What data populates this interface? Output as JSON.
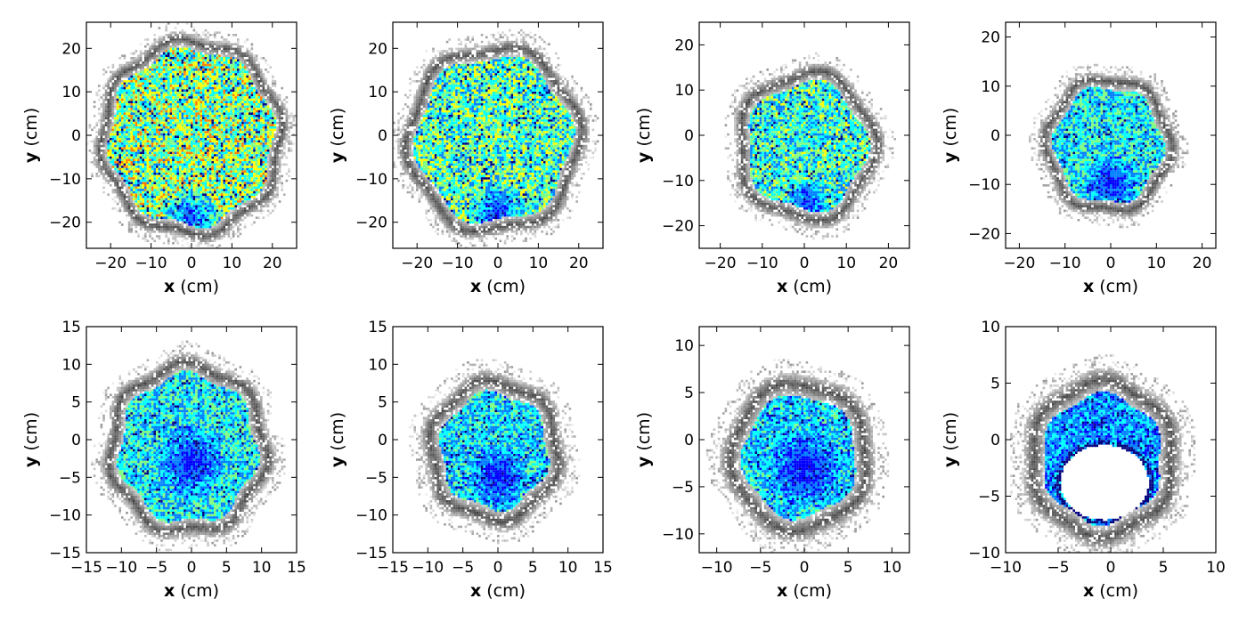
{
  "chart_data": [
    {
      "type": "heatmap",
      "xlabel": {
        "var": "x",
        "unit": " (cm)"
      },
      "ylabel": {
        "var": "y",
        "unit": " (cm)"
      },
      "xlim": [
        -26,
        26
      ],
      "ylim": [
        -26,
        26
      ],
      "xticks": [
        -20,
        -10,
        0,
        10,
        20
      ],
      "yticks": [
        -20,
        -10,
        0,
        10,
        20
      ],
      "xtick_labels": [
        "−20",
        "−10",
        "0",
        "10",
        "20"
      ],
      "ytick_labels": [
        "−20",
        "−10",
        "0",
        "10",
        "20"
      ],
      "shape": {
        "cx": 0,
        "cy": -0.5,
        "r": 22.5,
        "lobes": 8,
        "lobe_amp": 0.04
      },
      "rim_width": 2.2,
      "inner_max_level": 0.85,
      "dense_region": {
        "cx": 0,
        "cy": -19,
        "r": 7
      },
      "hole": null
    },
    {
      "type": "heatmap",
      "xlabel": {
        "var": "x",
        "unit": " (cm)"
      },
      "ylabel": {
        "var": "y",
        "unit": " (cm)"
      },
      "xlim": [
        -26,
        26
      ],
      "ylim": [
        -26,
        26
      ],
      "xticks": [
        -20,
        -10,
        0,
        10,
        20
      ],
      "yticks": [
        -20,
        -10,
        0,
        10,
        20
      ],
      "xtick_labels": [
        "−20",
        "−10",
        "0",
        "10",
        "20"
      ],
      "ytick_labels": [
        "−20",
        "−10",
        "0",
        "10",
        "20"
      ],
      "shape": {
        "cx": -1,
        "cy": -1,
        "r": 21.5,
        "lobes": 6,
        "lobe_amp": 0.05
      },
      "rim_width": 2.4,
      "inner_max_level": 0.75,
      "dense_region": {
        "cx": 0,
        "cy": -18,
        "r": 7
      },
      "hole": null
    },
    {
      "type": "heatmap",
      "xlabel": {
        "var": "x",
        "unit": " (cm)"
      },
      "ylabel": {
        "var": "y",
        "unit": " (cm)"
      },
      "xlim": [
        -25,
        25
      ],
      "ylim": [
        -25,
        25
      ],
      "xticks": [
        -20,
        -10,
        0,
        10,
        20
      ],
      "yticks": [
        -20,
        -10,
        0,
        10,
        20
      ],
      "xtick_labels": [
        "−20",
        "−10",
        "0",
        "10",
        "20"
      ],
      "ytick_labels": [
        "−20",
        "−10",
        "0",
        "10",
        "20"
      ],
      "shape": {
        "cx": 0.5,
        "cy": -2.5,
        "r": 16.5,
        "lobes": 5,
        "lobe_amp": 0.06
      },
      "rim_width": 2.3,
      "inner_max_level": 0.7,
      "dense_region": {
        "cx": 1,
        "cy": -15,
        "r": 5
      },
      "hole": null
    },
    {
      "type": "heatmap",
      "xlabel": {
        "var": "x",
        "unit": " (cm)"
      },
      "ylabel": {
        "var": "y",
        "unit": " (cm)"
      },
      "xlim": [
        -23,
        23
      ],
      "ylim": [
        -23,
        23
      ],
      "xticks": [
        -20,
        -10,
        0,
        10,
        20
      ],
      "yticks": [
        -20,
        -10,
        0,
        10,
        20
      ],
      "xtick_labels": [
        "−20",
        "−10",
        "0",
        "10",
        "20"
      ],
      "ytick_labels": [
        "−20",
        "−10",
        "0",
        "10",
        "20"
      ],
      "shape": {
        "cx": -0.5,
        "cy": -2,
        "r": 13.8,
        "lobes": 6,
        "lobe_amp": 0.05
      },
      "rim_width": 2.0,
      "inner_max_level": 0.62,
      "dense_region": {
        "cx": 0,
        "cy": -10,
        "r": 6
      },
      "hole": null
    },
    {
      "type": "heatmap",
      "xlabel": {
        "var": "x",
        "unit": " (cm)"
      },
      "ylabel": {
        "var": "y",
        "unit": " (cm)"
      },
      "xlim": [
        -15,
        15
      ],
      "ylim": [
        -15,
        15
      ],
      "xticks": [
        -15,
        -10,
        -5,
        0,
        5,
        10,
        15
      ],
      "yticks": [
        -15,
        -10,
        -5,
        0,
        5,
        10,
        15
      ],
      "xtick_labels": [
        "−15",
        "−10",
        "−5",
        "0",
        "5",
        "10",
        "15"
      ],
      "ytick_labels": [
        "−15",
        "−10",
        "−5",
        "0",
        "5",
        "10",
        "15"
      ],
      "shape": {
        "cx": -0.5,
        "cy": -1.2,
        "r": 11.3,
        "lobes": 7,
        "lobe_amp": 0.05
      },
      "rim_width": 1.5,
      "inner_max_level": 0.62,
      "dense_region": {
        "cx": 0,
        "cy": -3,
        "r": 5
      },
      "hole": null
    },
    {
      "type": "heatmap",
      "xlabel": {
        "var": "x",
        "unit": " (cm)"
      },
      "ylabel": {
        "var": "y",
        "unit": " (cm)"
      },
      "xlim": [
        -15,
        15
      ],
      "ylim": [
        -15,
        15
      ],
      "xticks": [
        -15,
        -10,
        -5,
        0,
        5,
        10,
        15
      ],
      "yticks": [
        -15,
        -10,
        -5,
        0,
        5,
        10,
        15
      ],
      "xtick_labels": [
        "−15",
        "−10",
        "−5",
        "0",
        "5",
        "10",
        "15"
      ],
      "ytick_labels": [
        "−15",
        "−10",
        "−5",
        "0",
        "5",
        "10",
        "15"
      ],
      "shape": {
        "cx": -0.5,
        "cy": -1.5,
        "r": 9.4,
        "lobes": 6,
        "lobe_amp": 0.05
      },
      "rim_width": 1.7,
      "inner_max_level": 0.58,
      "dense_region": {
        "cx": 0,
        "cy": -5,
        "r": 4
      },
      "hole": null
    },
    {
      "type": "heatmap",
      "xlabel": {
        "var": "x",
        "unit": " (cm)"
      },
      "ylabel": {
        "var": "y",
        "unit": " (cm)"
      },
      "xlim": [
        -12,
        12
      ],
      "ylim": [
        -12,
        12
      ],
      "xticks": [
        -10,
        -5,
        0,
        5,
        10
      ],
      "yticks": [
        -10,
        -5,
        0,
        5,
        10
      ],
      "xtick_labels": [
        "−10",
        "−5",
        "0",
        "5",
        "10"
      ],
      "ytick_labels": [
        "−10",
        "−5",
        "0",
        "5",
        "10"
      ],
      "shape": {
        "cx": -0.5,
        "cy": -1.8,
        "r": 8.0,
        "lobes": 5,
        "lobe_amp": 0.04
      },
      "rim_width": 1.5,
      "inner_max_level": 0.55,
      "dense_region": {
        "cx": 0,
        "cy": -3,
        "r": 4
      },
      "hole": null
    },
    {
      "type": "heatmap",
      "xlabel": {
        "var": "x",
        "unit": " (cm)"
      },
      "ylabel": {
        "var": "y",
        "unit": " (cm)"
      },
      "xlim": [
        -10,
        10
      ],
      "ylim": [
        -10,
        10
      ],
      "xticks": [
        -10,
        -5,
        0,
        5,
        10
      ],
      "yticks": [
        -10,
        -5,
        0,
        5,
        10
      ],
      "xtick_labels": [
        "−10",
        "−5",
        "0",
        "5",
        "10"
      ],
      "ytick_labels": [
        "−10",
        "−5",
        "0",
        "5",
        "10"
      ],
      "shape": {
        "cx": -0.8,
        "cy": -1.7,
        "r": 7.0,
        "lobes": 6,
        "lobe_amp": 0.04
      },
      "rim_width": 1.3,
      "inner_max_level": 0.45,
      "dense_region": {
        "cx": 0,
        "cy": -5,
        "r": 3
      },
      "hole": {
        "cx": -0.6,
        "cy": -3.8,
        "rx": 4.2,
        "ry": 3.3
      }
    }
  ],
  "colormap": [
    "#00007f",
    "#0000ff",
    "#007fff",
    "#00ffff",
    "#7fff7f",
    "#ffff00",
    "#ff7f00",
    "#ff0000"
  ]
}
